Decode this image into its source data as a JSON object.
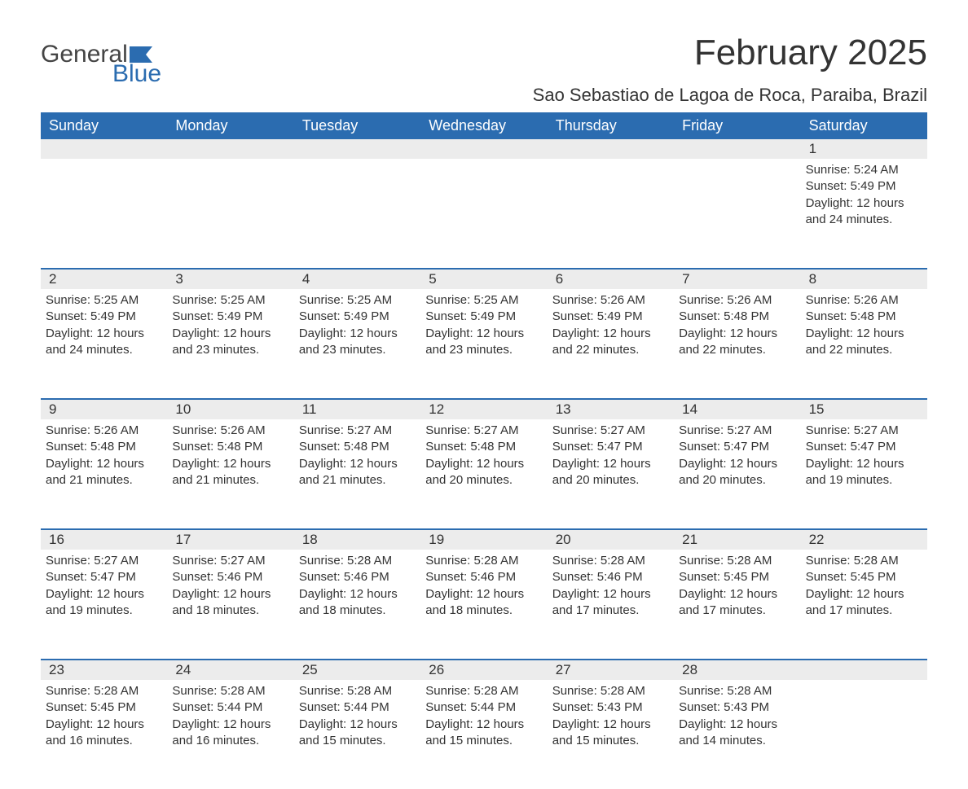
{
  "logo": {
    "text_general": "General",
    "text_blue": "Blue"
  },
  "title": "February 2025",
  "location": "Sao Sebastiao de Lagoa de Roca, Paraiba, Brazil",
  "colors": {
    "header_bg": "#2b6cb0",
    "header_text": "#ffffff",
    "daybar_bg": "#ececec",
    "blue_accent": "#2b6cb0",
    "body_text": "#333333",
    "page_bg": "#ffffff"
  },
  "weekdays": [
    "Sunday",
    "Monday",
    "Tuesday",
    "Wednesday",
    "Thursday",
    "Friday",
    "Saturday"
  ],
  "weeks": [
    {
      "days": [
        null,
        null,
        null,
        null,
        null,
        null,
        {
          "num": "1",
          "sunrise": "Sunrise: 5:24 AM",
          "sunset": "Sunset: 5:49 PM",
          "daylight1": "Daylight: 12 hours",
          "daylight2": "and 24 minutes."
        }
      ]
    },
    {
      "days": [
        {
          "num": "2",
          "sunrise": "Sunrise: 5:25 AM",
          "sunset": "Sunset: 5:49 PM",
          "daylight1": "Daylight: 12 hours",
          "daylight2": "and 24 minutes."
        },
        {
          "num": "3",
          "sunrise": "Sunrise: 5:25 AM",
          "sunset": "Sunset: 5:49 PM",
          "daylight1": "Daylight: 12 hours",
          "daylight2": "and 23 minutes."
        },
        {
          "num": "4",
          "sunrise": "Sunrise: 5:25 AM",
          "sunset": "Sunset: 5:49 PM",
          "daylight1": "Daylight: 12 hours",
          "daylight2": "and 23 minutes."
        },
        {
          "num": "5",
          "sunrise": "Sunrise: 5:25 AM",
          "sunset": "Sunset: 5:49 PM",
          "daylight1": "Daylight: 12 hours",
          "daylight2": "and 23 minutes."
        },
        {
          "num": "6",
          "sunrise": "Sunrise: 5:26 AM",
          "sunset": "Sunset: 5:49 PM",
          "daylight1": "Daylight: 12 hours",
          "daylight2": "and 22 minutes."
        },
        {
          "num": "7",
          "sunrise": "Sunrise: 5:26 AM",
          "sunset": "Sunset: 5:48 PM",
          "daylight1": "Daylight: 12 hours",
          "daylight2": "and 22 minutes."
        },
        {
          "num": "8",
          "sunrise": "Sunrise: 5:26 AM",
          "sunset": "Sunset: 5:48 PM",
          "daylight1": "Daylight: 12 hours",
          "daylight2": "and 22 minutes."
        }
      ]
    },
    {
      "days": [
        {
          "num": "9",
          "sunrise": "Sunrise: 5:26 AM",
          "sunset": "Sunset: 5:48 PM",
          "daylight1": "Daylight: 12 hours",
          "daylight2": "and 21 minutes."
        },
        {
          "num": "10",
          "sunrise": "Sunrise: 5:26 AM",
          "sunset": "Sunset: 5:48 PM",
          "daylight1": "Daylight: 12 hours",
          "daylight2": "and 21 minutes."
        },
        {
          "num": "11",
          "sunrise": "Sunrise: 5:27 AM",
          "sunset": "Sunset: 5:48 PM",
          "daylight1": "Daylight: 12 hours",
          "daylight2": "and 21 minutes."
        },
        {
          "num": "12",
          "sunrise": "Sunrise: 5:27 AM",
          "sunset": "Sunset: 5:48 PM",
          "daylight1": "Daylight: 12 hours",
          "daylight2": "and 20 minutes."
        },
        {
          "num": "13",
          "sunrise": "Sunrise: 5:27 AM",
          "sunset": "Sunset: 5:47 PM",
          "daylight1": "Daylight: 12 hours",
          "daylight2": "and 20 minutes."
        },
        {
          "num": "14",
          "sunrise": "Sunrise: 5:27 AM",
          "sunset": "Sunset: 5:47 PM",
          "daylight1": "Daylight: 12 hours",
          "daylight2": "and 20 minutes."
        },
        {
          "num": "15",
          "sunrise": "Sunrise: 5:27 AM",
          "sunset": "Sunset: 5:47 PM",
          "daylight1": "Daylight: 12 hours",
          "daylight2": "and 19 minutes."
        }
      ]
    },
    {
      "days": [
        {
          "num": "16",
          "sunrise": "Sunrise: 5:27 AM",
          "sunset": "Sunset: 5:47 PM",
          "daylight1": "Daylight: 12 hours",
          "daylight2": "and 19 minutes."
        },
        {
          "num": "17",
          "sunrise": "Sunrise: 5:27 AM",
          "sunset": "Sunset: 5:46 PM",
          "daylight1": "Daylight: 12 hours",
          "daylight2": "and 18 minutes."
        },
        {
          "num": "18",
          "sunrise": "Sunrise: 5:28 AM",
          "sunset": "Sunset: 5:46 PM",
          "daylight1": "Daylight: 12 hours",
          "daylight2": "and 18 minutes."
        },
        {
          "num": "19",
          "sunrise": "Sunrise: 5:28 AM",
          "sunset": "Sunset: 5:46 PM",
          "daylight1": "Daylight: 12 hours",
          "daylight2": "and 18 minutes."
        },
        {
          "num": "20",
          "sunrise": "Sunrise: 5:28 AM",
          "sunset": "Sunset: 5:46 PM",
          "daylight1": "Daylight: 12 hours",
          "daylight2": "and 17 minutes."
        },
        {
          "num": "21",
          "sunrise": "Sunrise: 5:28 AM",
          "sunset": "Sunset: 5:45 PM",
          "daylight1": "Daylight: 12 hours",
          "daylight2": "and 17 minutes."
        },
        {
          "num": "22",
          "sunrise": "Sunrise: 5:28 AM",
          "sunset": "Sunset: 5:45 PM",
          "daylight1": "Daylight: 12 hours",
          "daylight2": "and 17 minutes."
        }
      ]
    },
    {
      "days": [
        {
          "num": "23",
          "sunrise": "Sunrise: 5:28 AM",
          "sunset": "Sunset: 5:45 PM",
          "daylight1": "Daylight: 12 hours",
          "daylight2": "and 16 minutes."
        },
        {
          "num": "24",
          "sunrise": "Sunrise: 5:28 AM",
          "sunset": "Sunset: 5:44 PM",
          "daylight1": "Daylight: 12 hours",
          "daylight2": "and 16 minutes."
        },
        {
          "num": "25",
          "sunrise": "Sunrise: 5:28 AM",
          "sunset": "Sunset: 5:44 PM",
          "daylight1": "Daylight: 12 hours",
          "daylight2": "and 15 minutes."
        },
        {
          "num": "26",
          "sunrise": "Sunrise: 5:28 AM",
          "sunset": "Sunset: 5:44 PM",
          "daylight1": "Daylight: 12 hours",
          "daylight2": "and 15 minutes."
        },
        {
          "num": "27",
          "sunrise": "Sunrise: 5:28 AM",
          "sunset": "Sunset: 5:43 PM",
          "daylight1": "Daylight: 12 hours",
          "daylight2": "and 15 minutes."
        },
        {
          "num": "28",
          "sunrise": "Sunrise: 5:28 AM",
          "sunset": "Sunset: 5:43 PM",
          "daylight1": "Daylight: 12 hours",
          "daylight2": "and 14 minutes."
        },
        null
      ]
    }
  ]
}
